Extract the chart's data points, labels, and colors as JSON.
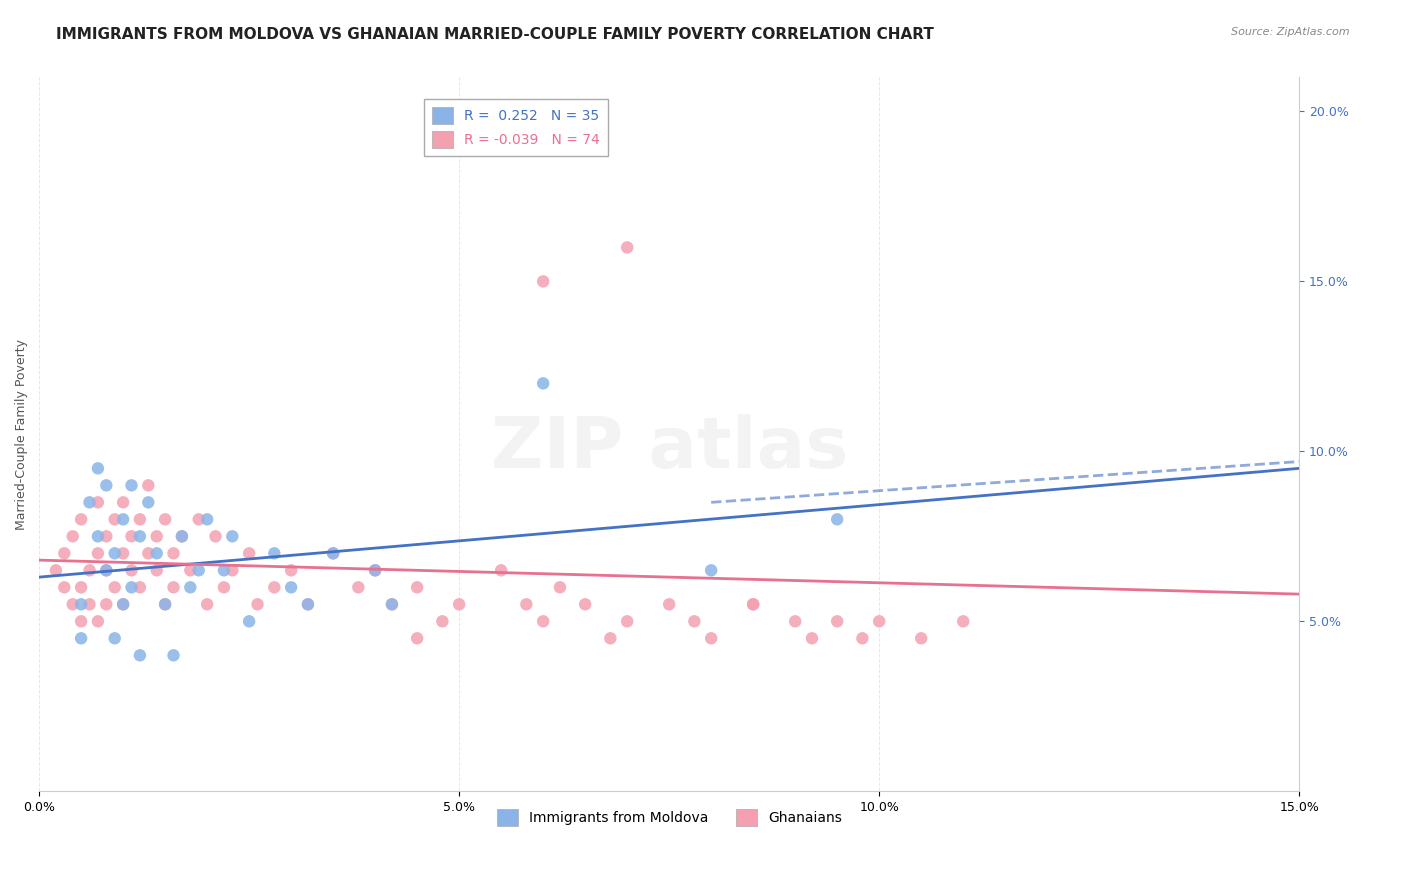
{
  "title": "IMMIGRANTS FROM MOLDOVA VS GHANAIAN MARRIED-COUPLE FAMILY POVERTY CORRELATION CHART",
  "source": "Source: ZipAtlas.com",
  "xlabel_bottom": "",
  "ylabel": "Married-Couple Family Poverty",
  "xmin": 0.0,
  "xmax": 0.15,
  "ymin": 0.0,
  "ymax": 0.21,
  "xticks": [
    0.0,
    0.05,
    0.1,
    0.15
  ],
  "xtick_labels": [
    "0.0%",
    "5.0%",
    "10.0%",
    "15.0%"
  ],
  "yticks_right": [
    0.05,
    0.1,
    0.15,
    0.2
  ],
  "ytick_labels_right": [
    "5.0%",
    "10.0%",
    "15.0%",
    "20.0%"
  ],
  "legend_r1": "R =  0.252   N = 35",
  "legend_r2": "R = -0.039   N = 74",
  "color_blue": "#8ab4e8",
  "color_pink": "#f4a0b0",
  "color_blue_line": "#4472c4",
  "color_pink_line": "#e87090",
  "watermark": "ZIPatlas",
  "blue_scatter_x": [
    0.005,
    0.005,
    0.006,
    0.007,
    0.007,
    0.008,
    0.008,
    0.009,
    0.009,
    0.01,
    0.01,
    0.011,
    0.011,
    0.012,
    0.012,
    0.013,
    0.014,
    0.015,
    0.016,
    0.017,
    0.018,
    0.019,
    0.02,
    0.022,
    0.023,
    0.025,
    0.028,
    0.03,
    0.032,
    0.035,
    0.04,
    0.042,
    0.06,
    0.08,
    0.095
  ],
  "blue_scatter_y": [
    0.045,
    0.055,
    0.085,
    0.095,
    0.075,
    0.065,
    0.09,
    0.07,
    0.045,
    0.055,
    0.08,
    0.06,
    0.09,
    0.04,
    0.075,
    0.085,
    0.07,
    0.055,
    0.04,
    0.075,
    0.06,
    0.065,
    0.08,
    0.065,
    0.075,
    0.05,
    0.07,
    0.06,
    0.055,
    0.07,
    0.065,
    0.055,
    0.12,
    0.065,
    0.08
  ],
  "pink_scatter_x": [
    0.002,
    0.003,
    0.003,
    0.004,
    0.004,
    0.005,
    0.005,
    0.005,
    0.006,
    0.006,
    0.007,
    0.007,
    0.007,
    0.008,
    0.008,
    0.008,
    0.009,
    0.009,
    0.01,
    0.01,
    0.01,
    0.011,
    0.011,
    0.012,
    0.012,
    0.013,
    0.013,
    0.014,
    0.014,
    0.015,
    0.015,
    0.016,
    0.016,
    0.017,
    0.018,
    0.019,
    0.02,
    0.021,
    0.022,
    0.023,
    0.025,
    0.026,
    0.028,
    0.03,
    0.032,
    0.035,
    0.038,
    0.04,
    0.042,
    0.045,
    0.048,
    0.05,
    0.055,
    0.058,
    0.06,
    0.062,
    0.065,
    0.068,
    0.07,
    0.075,
    0.078,
    0.08,
    0.085,
    0.09,
    0.092,
    0.095,
    0.098,
    0.1,
    0.105,
    0.11,
    0.06,
    0.07,
    0.045,
    0.085
  ],
  "pink_scatter_y": [
    0.065,
    0.06,
    0.07,
    0.055,
    0.075,
    0.05,
    0.06,
    0.08,
    0.055,
    0.065,
    0.07,
    0.05,
    0.085,
    0.055,
    0.065,
    0.075,
    0.06,
    0.08,
    0.055,
    0.07,
    0.085,
    0.065,
    0.075,
    0.06,
    0.08,
    0.07,
    0.09,
    0.065,
    0.075,
    0.055,
    0.08,
    0.06,
    0.07,
    0.075,
    0.065,
    0.08,
    0.055,
    0.075,
    0.06,
    0.065,
    0.07,
    0.055,
    0.06,
    0.065,
    0.055,
    0.07,
    0.06,
    0.065,
    0.055,
    0.06,
    0.05,
    0.055,
    0.065,
    0.055,
    0.05,
    0.06,
    0.055,
    0.045,
    0.05,
    0.055,
    0.05,
    0.045,
    0.055,
    0.05,
    0.045,
    0.05,
    0.045,
    0.05,
    0.045,
    0.05,
    0.15,
    0.16,
    0.045,
    0.055
  ],
  "blue_trend_x": [
    0.0,
    0.15
  ],
  "blue_trend_y": [
    0.063,
    0.095
  ],
  "pink_trend_x": [
    0.0,
    0.15
  ],
  "pink_trend_y": [
    0.068,
    0.058
  ],
  "bg_color": "#ffffff",
  "grid_color": "#e0e0e0",
  "title_fontsize": 11,
  "axis_fontsize": 9
}
